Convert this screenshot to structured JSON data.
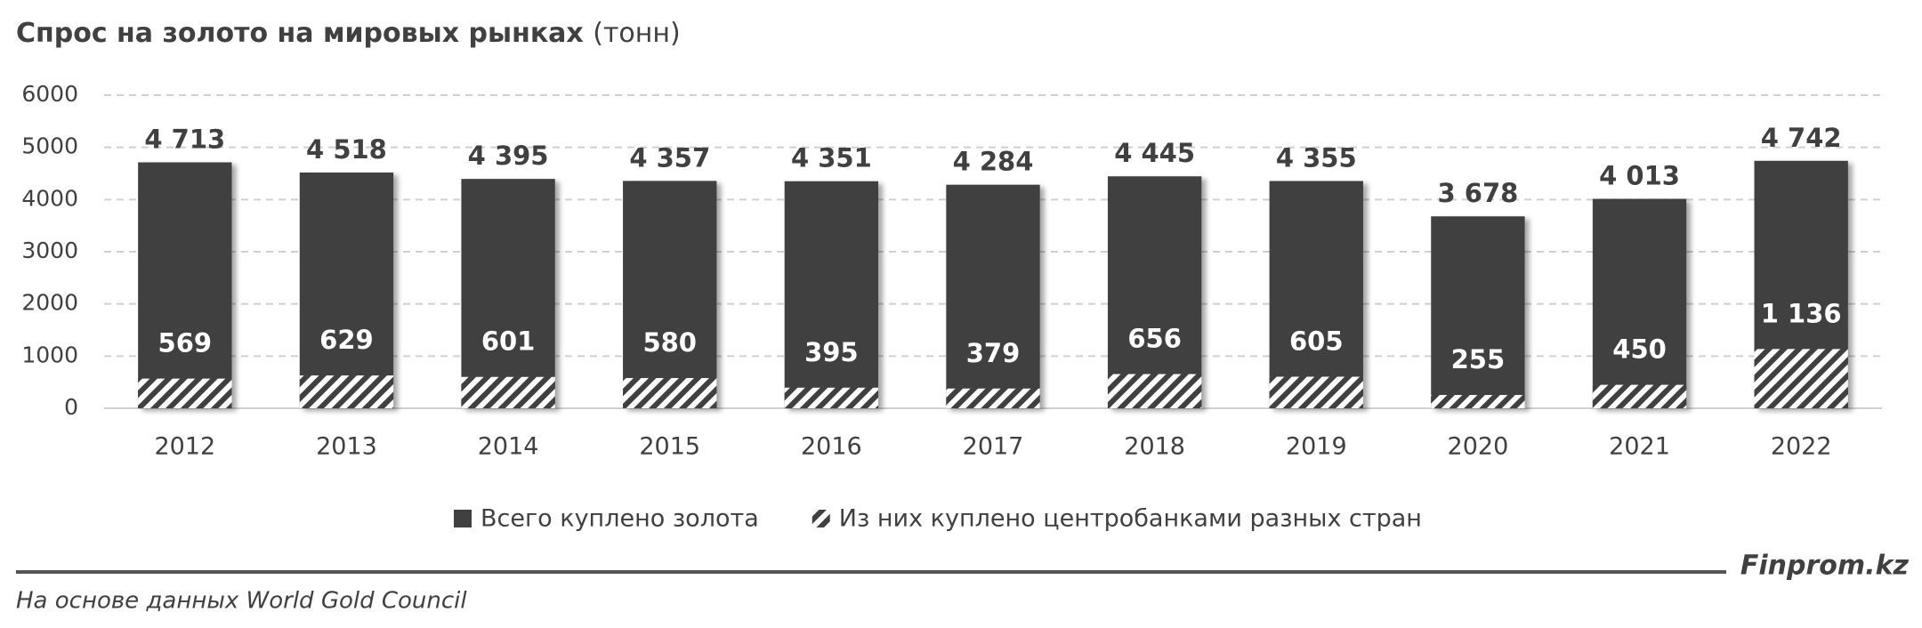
{
  "chart_data": {
    "type": "bar",
    "title": "Спрос на золото на мировых рынках",
    "subtitle": "(тонн)",
    "categories": [
      "2012",
      "2013",
      "2014",
      "2015",
      "2016",
      "2017",
      "2018",
      "2019",
      "2020",
      "2021",
      "2022"
    ],
    "series": [
      {
        "name": "Всего куплено золота",
        "color": "#404040",
        "hatch": false,
        "values": [
          4713,
          4518,
          4395,
          4357,
          4351,
          4284,
          4445,
          4355,
          3678,
          4013,
          4742
        ],
        "value_labels": [
          "4 713",
          "4 518",
          "4 395",
          "4 357",
          "4 351",
          "4 284",
          "4 445",
          "4 355",
          "3 678",
          "4 013",
          "4 742"
        ]
      },
      {
        "name": "Из них куплено центробанками разных стран",
        "color": "#404040",
        "hatch": true,
        "values": [
          569,
          629,
          601,
          580,
          395,
          379,
          656,
          605,
          255,
          450,
          1136
        ],
        "value_labels": [
          "569",
          "629",
          "601",
          "580",
          "395",
          "379",
          "656",
          "605",
          "255",
          "450",
          "1 136"
        ]
      }
    ],
    "ylim": [
      0,
      6000
    ],
    "yticks": [
      0,
      1000,
      2000,
      3000,
      4000,
      5000,
      6000
    ],
    "grid": true,
    "source": "На основе данных World Gold Council",
    "brand": "Finprom.kz"
  }
}
